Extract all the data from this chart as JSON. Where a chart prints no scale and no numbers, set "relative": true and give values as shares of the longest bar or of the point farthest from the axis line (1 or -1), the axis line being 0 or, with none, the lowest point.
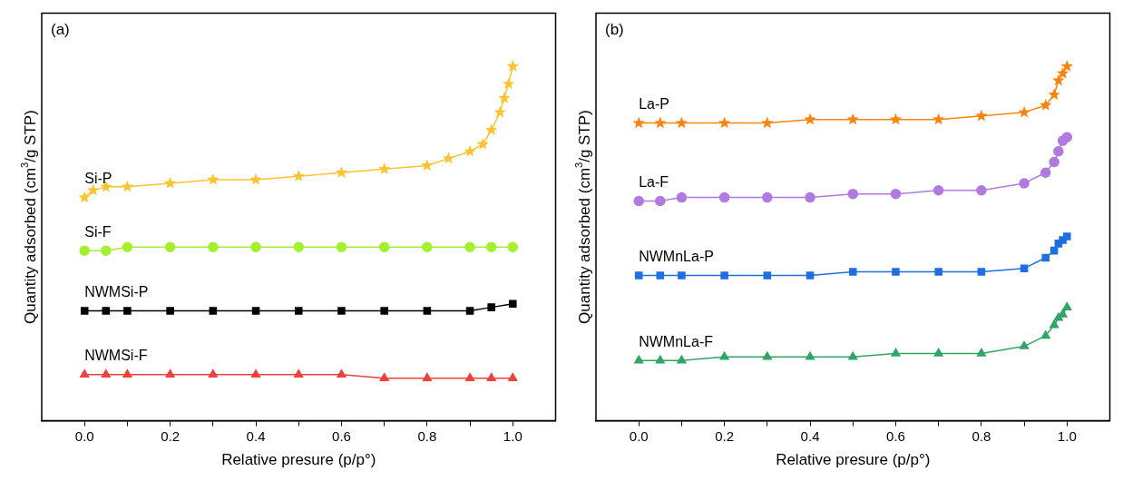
{
  "chart_data": [
    {
      "type": "line",
      "title": "(a)",
      "xlabel": "Relative presure (p/p°)",
      "ylabel": "Quantity adsorbed (cm$^{3}$/g STP)",
      "relative": true,
      "legend": false,
      "grid": false,
      "tick_labels": "x",
      "xlim": [
        -0.1,
        1.1
      ],
      "xticks": [
        {
          "value": 0,
          "label": "0.0"
        },
        {
          "value": 0.1,
          "label": null
        },
        {
          "value": 0.2,
          "label": "0.2"
        },
        {
          "value": 0.3,
          "label": null
        },
        {
          "value": 0.4,
          "label": "0.4"
        },
        {
          "value": 0.5,
          "label": null
        },
        {
          "value": 0.6,
          "label": "0.6"
        },
        {
          "value": 0.7,
          "label": null
        },
        {
          "value": 0.8,
          "label": "0.8"
        },
        {
          "value": 0.9,
          "label": null
        },
        {
          "value": 1,
          "label": "1.0"
        }
      ],
      "series": [
        {
          "name": "Si-P",
          "color": "#fcc431",
          "marker": "star",
          "x": [
            0,
            0.02,
            0.05,
            0.1,
            0.2,
            0.3,
            0.4,
            0.5,
            0.6,
            0.7,
            0.8,
            0.85,
            0.9,
            0.93,
            0.95,
            0.97,
            0.98,
            0.99,
            1.0
          ],
          "values": [
            0.63,
            0.65,
            0.66,
            0.66,
            0.67,
            0.68,
            0.68,
            0.69,
            0.7,
            0.71,
            0.72,
            0.74,
            0.76,
            0.78,
            0.82,
            0.87,
            0.91,
            0.95,
            1
          ]
        },
        {
          "name": "Si-F",
          "color": "#a4ef2e",
          "marker": "circle",
          "x": [
            0,
            0.05,
            0.1,
            0.2,
            0.3,
            0.4,
            0.5,
            0.6,
            0.7,
            0.8,
            0.9,
            0.95,
            1.0
          ],
          "values": [
            0.48,
            0.48,
            0.49,
            0.49,
            0.49,
            0.49,
            0.49,
            0.49,
            0.49,
            0.49,
            0.49,
            0.49,
            0.49
          ]
        },
        {
          "name": "NWMSi-P",
          "color": "#000000",
          "marker": "square",
          "x": [
            0,
            0.05,
            0.1,
            0.2,
            0.3,
            0.4,
            0.5,
            0.6,
            0.7,
            0.8,
            0.9,
            0.95,
            1.0
          ],
          "values": [
            0.31,
            0.31,
            0.31,
            0.31,
            0.31,
            0.31,
            0.31,
            0.31,
            0.31,
            0.31,
            0.31,
            0.32,
            0.33
          ]
        },
        {
          "name": "NWMSi-F",
          "color": "#f0403c",
          "marker": "triangle",
          "x": [
            0,
            0.05,
            0.1,
            0.2,
            0.3,
            0.4,
            0.5,
            0.6,
            0.7,
            0.8,
            0.9,
            0.95,
            1.0
          ],
          "values": [
            0.13,
            0.13,
            0.13,
            0.13,
            0.13,
            0.13,
            0.13,
            0.13,
            0.12,
            0.12,
            0.12,
            0.12,
            0.12
          ]
        }
      ]
    },
    {
      "type": "line",
      "title": "(b)",
      "xlabel": "Relative presure (p/p°)",
      "ylabel": "Quantity adsorbed (cm$^{3}$/g STP)",
      "relative": true,
      "legend": false,
      "grid": false,
      "tick_labels": "x",
      "xlim": [
        -0.1,
        1.1
      ],
      "xticks": [
        {
          "value": 0,
          "label": "0.0"
        },
        {
          "value": 0.1,
          "label": null
        },
        {
          "value": 0.2,
          "label": "0.2"
        },
        {
          "value": 0.3,
          "label": null
        },
        {
          "value": 0.4,
          "label": "0.4"
        },
        {
          "value": 0.5,
          "label": null
        },
        {
          "value": 0.6,
          "label": "0.6"
        },
        {
          "value": 0.7,
          "label": null
        },
        {
          "value": 0.8,
          "label": "0.8"
        },
        {
          "value": 0.9,
          "label": null
        },
        {
          "value": 1,
          "label": "1.0"
        }
      ],
      "series": [
        {
          "name": "La-P",
          "color": "#fb8411",
          "marker": "star",
          "x": [
            0,
            0.05,
            0.1,
            0.2,
            0.3,
            0.4,
            0.5,
            0.6,
            0.7,
            0.8,
            0.9,
            0.95,
            0.97,
            0.98,
            0.99,
            1.0
          ],
          "values": [
            0.84,
            0.84,
            0.84,
            0.84,
            0.84,
            0.85,
            0.85,
            0.85,
            0.85,
            0.86,
            0.87,
            0.89,
            0.92,
            0.96,
            0.98,
            1
          ]
        },
        {
          "name": "La-F",
          "color": "#b07ae0",
          "marker": "circle",
          "x": [
            0,
            0.05,
            0.1,
            0.2,
            0.3,
            0.4,
            0.5,
            0.6,
            0.7,
            0.8,
            0.9,
            0.95,
            0.97,
            0.98,
            0.99,
            1.0
          ],
          "values": [
            0.62,
            0.62,
            0.63,
            0.63,
            0.63,
            0.63,
            0.64,
            0.64,
            0.65,
            0.65,
            0.67,
            0.7,
            0.73,
            0.76,
            0.79,
            0.8
          ]
        },
        {
          "name": "NWMnLa-P",
          "color": "#1f6fe0",
          "marker": "square",
          "x": [
            0,
            0.05,
            0.1,
            0.2,
            0.3,
            0.4,
            0.5,
            0.6,
            0.7,
            0.8,
            0.9,
            0.95,
            0.97,
            0.98,
            0.99,
            1.0
          ],
          "values": [
            0.41,
            0.41,
            0.41,
            0.41,
            0.41,
            0.41,
            0.42,
            0.42,
            0.42,
            0.42,
            0.43,
            0.46,
            0.48,
            0.5,
            0.51,
            0.52
          ]
        },
        {
          "name": "NWMnLa-F",
          "color": "#30a566",
          "marker": "triangle",
          "x": [
            0,
            0.05,
            0.1,
            0.2,
            0.3,
            0.4,
            0.5,
            0.6,
            0.7,
            0.8,
            0.9,
            0.95,
            0.97,
            0.98,
            0.99,
            1.0
          ],
          "values": [
            0.17,
            0.17,
            0.17,
            0.18,
            0.18,
            0.18,
            0.18,
            0.19,
            0.19,
            0.19,
            0.21,
            0.24,
            0.27,
            0.29,
            0.3,
            0.32
          ]
        }
      ]
    }
  ]
}
